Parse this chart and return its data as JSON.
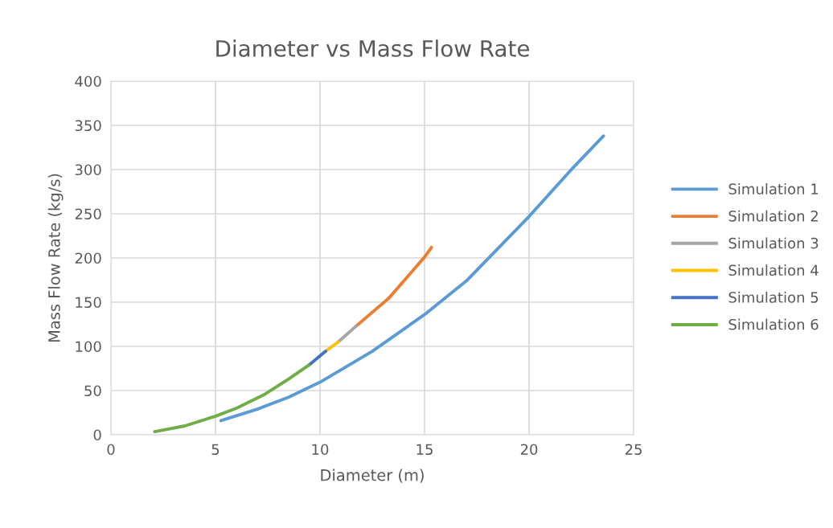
{
  "chart_data": {
    "type": "line",
    "title": "Diameter vs Mass Flow Rate",
    "xlabel": "Diameter (m)",
    "ylabel": "Mass Flow Rate (kg/s)",
    "xlim": [
      0,
      25
    ],
    "xticks": [
      0,
      5,
      10,
      15,
      20,
      25
    ],
    "ylim": [
      0,
      400
    ],
    "yticks": [
      0,
      50,
      100,
      150,
      200,
      250,
      300,
      350,
      400
    ],
    "grid": true,
    "legend": "right",
    "marker": "none",
    "line_style": "solid",
    "series": [
      {
        "name": "Simulation 1",
        "color": "#5b9bd5",
        "x": [
          5.26,
          7,
          8.5,
          10,
          12.5,
          15,
          17,
          20,
          22.1,
          23.56
        ],
        "values": [
          16,
          29,
          42.5,
          59.5,
          94.5,
          136,
          174,
          247,
          302,
          338
        ]
      },
      {
        "name": "Simulation 2",
        "color": "#ed7d31",
        "x": [
          11.71,
          13.27,
          15,
          15.33
        ],
        "values": [
          122.6,
          154,
          201,
          212
        ]
      },
      {
        "name": "Simulation 3",
        "color": "#a5a5a5",
        "x": [
          10.87,
          11.71
        ],
        "values": [
          105,
          122.6
        ]
      },
      {
        "name": "Simulation 4",
        "color": "#ffc000",
        "x": [
          10.27,
          10.87
        ],
        "values": [
          94.5,
          105
        ]
      },
      {
        "name": "Simulation 5",
        "color": "#4472c4",
        "x": [
          9.46,
          10.27
        ],
        "values": [
          78.7,
          94.5
        ]
      },
      {
        "name": "Simulation 6",
        "color": "#70ad47",
        "x": [
          2.09,
          3.53,
          5,
          6,
          7.37,
          8.5,
          9.46
        ],
        "values": [
          3.5,
          10,
          21,
          30,
          46,
          63,
          78.7
        ]
      }
    ]
  }
}
